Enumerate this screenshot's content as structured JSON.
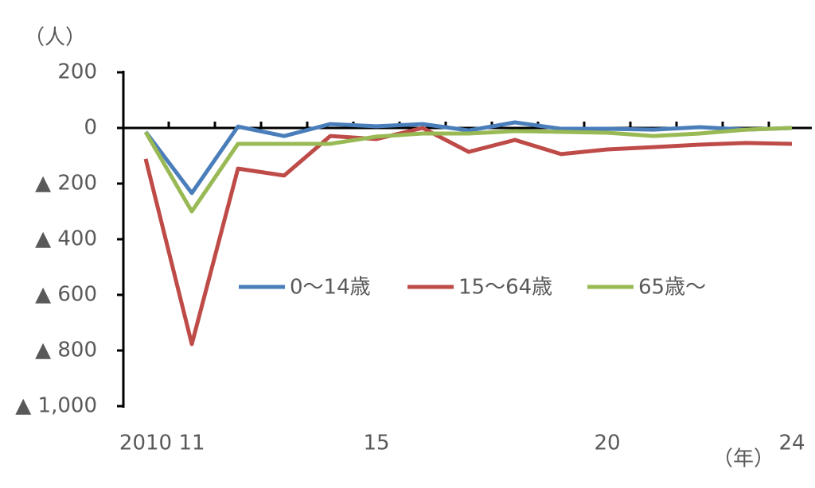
{
  "chart_data": {
    "type": "line",
    "y_unit_label": "（人）",
    "x_unit_label": "（年）",
    "categories": [
      "2010",
      "11",
      null,
      null,
      null,
      "15",
      null,
      null,
      null,
      null,
      "20",
      null,
      null,
      null,
      "24"
    ],
    "series": [
      {
        "name": "0～14歳",
        "color": "#4a7ebb",
        "values": [
          -14,
          -234,
          5,
          -29,
          14,
          6,
          14,
          -9,
          20,
          -3,
          -3,
          -6,
          3,
          -6,
          0
        ]
      },
      {
        "name": "15～64歳",
        "color": "#be4b48",
        "values": [
          -111,
          -777,
          -146,
          -171,
          -29,
          -40,
          0,
          -86,
          -43,
          -94,
          -77,
          -69,
          -60,
          -54,
          -57
        ]
      },
      {
        "name": "65歳～",
        "color": "#98b954",
        "values": [
          -15,
          -300,
          -57,
          -57,
          -57,
          -31,
          -20,
          -20,
          -11,
          -14,
          -17,
          -29,
          -20,
          -6,
          0
        ]
      }
    ],
    "ylim": [
      -1000,
      200
    ],
    "yticks": [
      200,
      0,
      {
        "value": -200,
        "label": "▲ 200"
      },
      {
        "value": -400,
        "label": "▲ 400"
      },
      {
        "value": -600,
        "label": "▲ 600"
      },
      {
        "value": -800,
        "label": "▲ 800"
      },
      {
        "value": -1000,
        "label": "▲ 1,000"
      }
    ]
  }
}
